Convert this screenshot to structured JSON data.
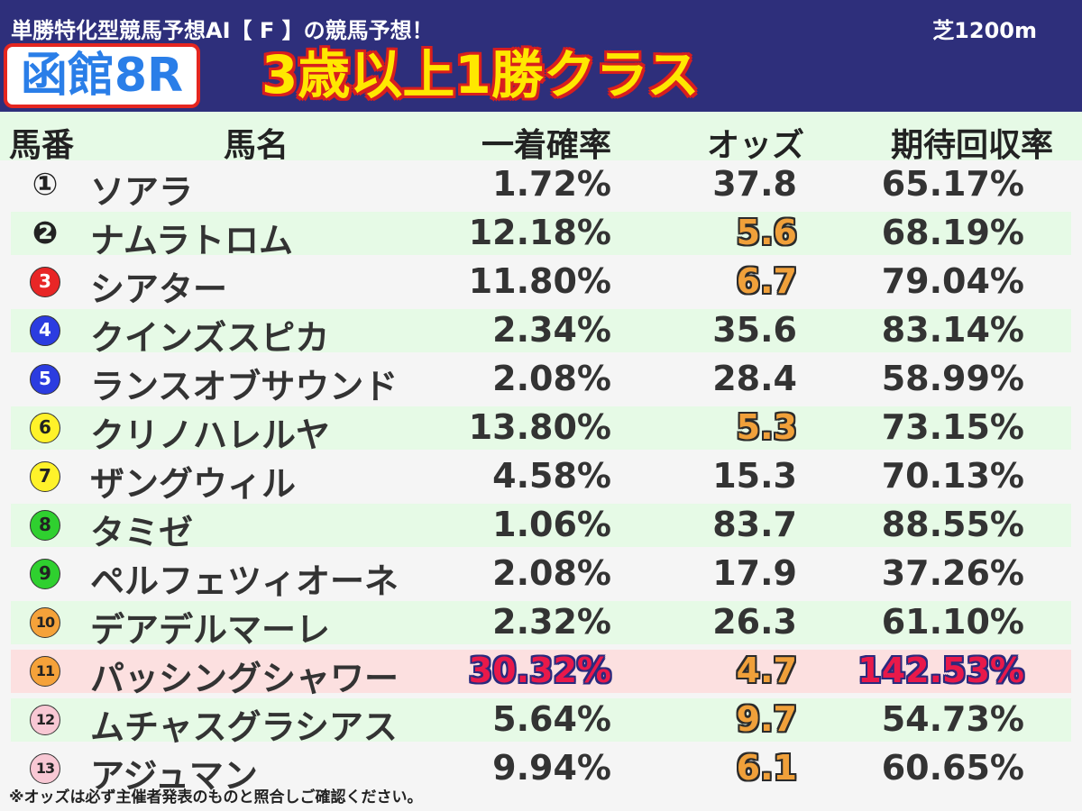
{
  "header": {
    "subtitle": "単勝特化型競馬予想AI【 F 】の競馬予想！",
    "course": "芝1200m",
    "venue": "函館8R",
    "race_class": "3歳以上1勝クラス",
    "bg_color": "#2e2f7b"
  },
  "columns": {
    "number": "馬番",
    "name": "馬名",
    "win_prob": "一着確率",
    "odds": "オッズ",
    "expected_return": "期待回収率"
  },
  "rows": [
    {
      "number": "①",
      "name": "ソアラ",
      "win_prob": "1.72%",
      "odds": "37.8",
      "expected_return": "65.17%",
      "badge_bg": "#ffffff",
      "badge_fg": "#222222",
      "odds_highlight": false,
      "row_highlight": false
    },
    {
      "number": "❷",
      "name": "ナムラトロム",
      "win_prob": "12.18%",
      "odds": "5.6",
      "expected_return": "68.19%",
      "badge_bg": "#222222",
      "badge_fg": "#ffffff",
      "odds_highlight": true,
      "row_highlight": false
    },
    {
      "number": "3",
      "name": "シアター",
      "win_prob": "11.80%",
      "odds": "6.7",
      "expected_return": "79.04%",
      "badge_bg": "#e82626",
      "badge_fg": "#ffffff",
      "odds_highlight": true,
      "row_highlight": false
    },
    {
      "number": "4",
      "name": "クインズスピカ",
      "win_prob": "2.34%",
      "odds": "35.6",
      "expected_return": "83.14%",
      "badge_bg": "#2b3ce0",
      "badge_fg": "#ffffff",
      "odds_highlight": false,
      "row_highlight": false
    },
    {
      "number": "5",
      "name": "ランスオブサウンド",
      "win_prob": "2.08%",
      "odds": "28.4",
      "expected_return": "58.99%",
      "badge_bg": "#2b3ce0",
      "badge_fg": "#ffffff",
      "odds_highlight": false,
      "row_highlight": false
    },
    {
      "number": "6",
      "name": "クリノハレルヤ",
      "win_prob": "13.80%",
      "odds": "5.3",
      "expected_return": "73.15%",
      "badge_bg": "#fff22a",
      "badge_fg": "#222222",
      "odds_highlight": true,
      "row_highlight": false
    },
    {
      "number": "7",
      "name": "ザングウィル",
      "win_prob": "4.58%",
      "odds": "15.3",
      "expected_return": "70.13%",
      "badge_bg": "#fff22a",
      "badge_fg": "#222222",
      "odds_highlight": false,
      "row_highlight": false
    },
    {
      "number": "8",
      "name": "タミゼ",
      "win_prob": "1.06%",
      "odds": "83.7",
      "expected_return": "88.55%",
      "badge_bg": "#2fd02f",
      "badge_fg": "#222222",
      "odds_highlight": false,
      "row_highlight": false
    },
    {
      "number": "9",
      "name": "ペルフェツィオーネ",
      "win_prob": "2.08%",
      "odds": "17.9",
      "expected_return": "37.26%",
      "badge_bg": "#2fd02f",
      "badge_fg": "#222222",
      "odds_highlight": false,
      "row_highlight": false
    },
    {
      "number": "10",
      "name": "デアデルマーレ",
      "win_prob": "2.32%",
      "odds": "26.3",
      "expected_return": "61.10%",
      "badge_bg": "#f5a23a",
      "badge_fg": "#222222",
      "odds_highlight": false,
      "row_highlight": false
    },
    {
      "number": "11",
      "name": "パッシングシャワー",
      "win_prob": "30.32%",
      "odds": "4.7",
      "expected_return": "142.53%",
      "badge_bg": "#f5a23a",
      "badge_fg": "#222222",
      "odds_highlight": true,
      "row_highlight": true
    },
    {
      "number": "12",
      "name": "ムチャスグラシアス",
      "win_prob": "5.64%",
      "odds": "9.7",
      "expected_return": "54.73%",
      "badge_bg": "#f8c8d4",
      "badge_fg": "#222222",
      "odds_highlight": true,
      "row_highlight": false
    },
    {
      "number": "13",
      "name": "アジュマン",
      "win_prob": "9.94%",
      "odds": "6.1",
      "expected_return": "60.65%",
      "badge_bg": "#f8c8d4",
      "badge_fg": "#222222",
      "odds_highlight": true,
      "row_highlight": false
    }
  ],
  "note": "※オッズは必ず主催者発表のものと照合しご確認ください。"
}
